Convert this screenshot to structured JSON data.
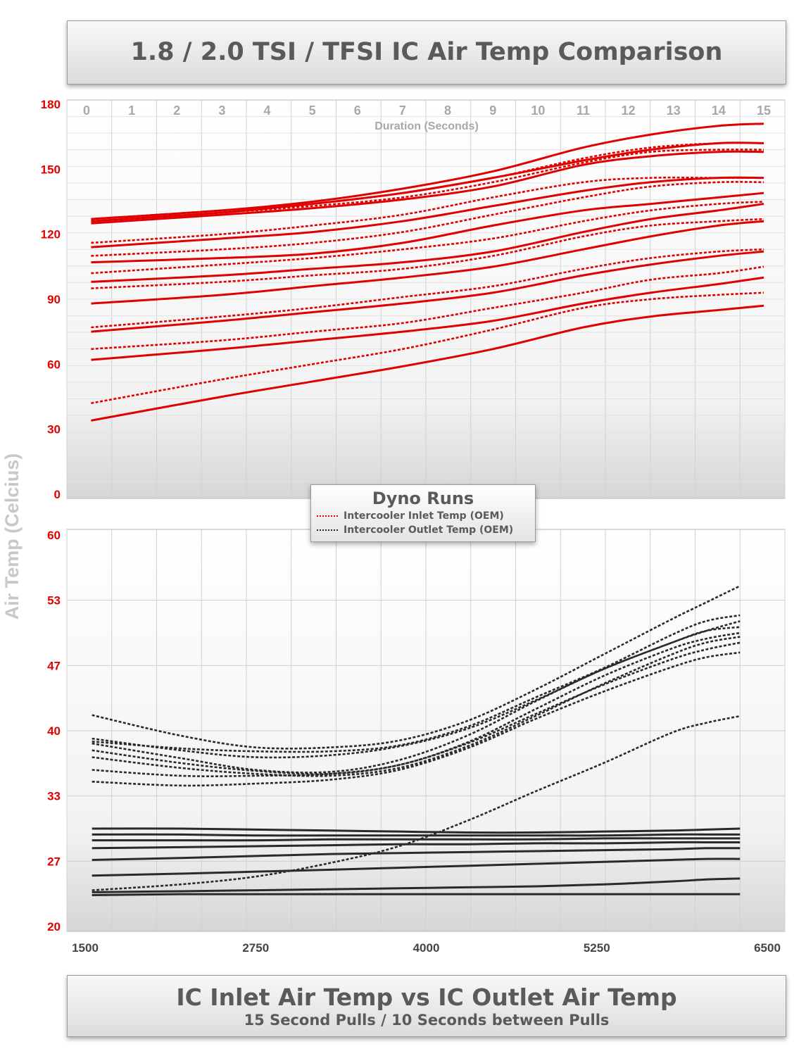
{
  "title": "1.8 / 2.0 TSI / TFSI IC Air Temp Comparison",
  "y_axis_label": "Air Temp (Celcius)",
  "footer": {
    "title": "IC Inlet Air Temp vs IC Outlet Air Temp",
    "subtitle": "15 Second Pulls / 10 Seconds between Pulls"
  },
  "legend": {
    "title": "Dyno Runs",
    "items": [
      {
        "label": "Intercooler Inlet Temp (OEM)",
        "color": "#e00000"
      },
      {
        "label": "Intercooler Outlet Temp (OEM)",
        "color": "#222222"
      }
    ]
  },
  "colors": {
    "inlet": "#e00000",
    "outlet": "#2a2a2a",
    "tick_red": "#e00000",
    "grid": "#d0d0d0"
  },
  "chart_data": [
    {
      "type": "line",
      "xlabel": "Duration (Seconds)",
      "ylabel": "Air Temp (Celcius)",
      "x_ticks": [
        0,
        1,
        2,
        3,
        4,
        5,
        6,
        7,
        8,
        9,
        10,
        11,
        12,
        13,
        14,
        15
      ],
      "y_ticks": [
        0,
        30,
        60,
        90,
        120,
        150,
        180
      ],
      "xlim": [
        0,
        15
      ],
      "ylim": [
        0,
        180
      ],
      "x_axis_position": "top",
      "grid": true,
      "x": [
        0.1,
        3,
        5,
        7,
        9,
        11,
        12.5,
        14,
        15
      ],
      "series": [
        {
          "style": "solid",
          "values": [
            34,
            45,
            52,
            59,
            67,
            77,
            82,
            85,
            87
          ]
        },
        {
          "style": "dashed",
          "values": [
            42,
            53,
            60,
            67,
            76,
            86,
            90,
            92,
            93
          ]
        },
        {
          "style": "solid",
          "values": [
            62,
            67,
            71,
            75,
            80,
            88,
            93,
            97,
            100
          ]
        },
        {
          "style": "dashed",
          "values": [
            67,
            71,
            75,
            79,
            86,
            93,
            99,
            102,
            105
          ]
        },
        {
          "style": "solid",
          "values": [
            75,
            80,
            84,
            88,
            93,
            101,
            106,
            110,
            112
          ]
        },
        {
          "style": "dashed",
          "values": [
            77,
            82,
            86,
            91,
            96,
            104,
            109,
            112,
            113
          ]
        },
        {
          "style": "solid",
          "values": [
            88,
            92,
            96,
            100,
            105,
            113,
            119,
            124,
            126
          ]
        },
        {
          "style": "dashed",
          "values": [
            95,
            98,
            101,
            104,
            110,
            119,
            124,
            126,
            127
          ]
        },
        {
          "style": "solid",
          "values": [
            98,
            101,
            104,
            107,
            112,
            121,
            127,
            131,
            134
          ]
        },
        {
          "style": "dashed",
          "values": [
            102,
            106,
            109,
            113,
            118,
            126,
            131,
            134,
            135
          ]
        },
        {
          "style": "solid",
          "values": [
            107,
            109,
            111,
            116,
            124,
            131,
            134,
            137,
            139
          ]
        },
        {
          "style": "dashed",
          "values": [
            110,
            113,
            116,
            121,
            129,
            137,
            142,
            144,
            144
          ]
        },
        {
          "style": "solid",
          "values": [
            114,
            118,
            121,
            126,
            133,
            140,
            144,
            146,
            146
          ]
        },
        {
          "style": "dashed",
          "values": [
            116,
            120,
            124,
            129,
            137,
            144,
            146,
            146,
            146
          ]
        },
        {
          "style": "solid",
          "values": [
            125,
            129,
            132,
            136,
            142,
            152,
            156,
            158,
            158
          ]
        },
        {
          "style": "dashed",
          "values": [
            126,
            130,
            133,
            137,
            144,
            153,
            158,
            159,
            159
          ]
        },
        {
          "style": "solid",
          "values": [
            126,
            130,
            134,
            139,
            146,
            154,
            159,
            162,
            162
          ]
        },
        {
          "style": "dashed",
          "values": [
            127,
            131,
            134,
            139,
            146,
            155,
            160,
            162,
            162
          ]
        },
        {
          "style": "solid",
          "values": [
            127,
            131,
            135,
            141,
            149,
            160,
            166,
            170,
            171
          ]
        }
      ]
    },
    {
      "type": "line",
      "x_ticks": [
        1500,
        2750,
        4000,
        5250,
        6500
      ],
      "y_ticks": [
        20,
        27,
        33,
        40,
        47,
        53,
        60
      ],
      "xlim": [
        1400,
        6550
      ],
      "ylim": [
        20,
        60
      ],
      "grid": true,
      "x": [
        1550,
        2200,
        2750,
        3300,
        3800,
        4300,
        4800,
        5300,
        5800,
        6050,
        6300
      ],
      "series": [
        {
          "style": "solid",
          "values": [
            23.2,
            23.3,
            23.3,
            23.3,
            23.3,
            23.3,
            23.3,
            23.3,
            23.3,
            23.3,
            23.3
          ]
        },
        {
          "style": "solid",
          "values": [
            23.5,
            23.6,
            23.7,
            23.8,
            23.9,
            24.0,
            24.1,
            24.3,
            24.6,
            24.8,
            24.9
          ]
        },
        {
          "style": "dashed",
          "values": [
            23.7,
            24.3,
            25.1,
            26.5,
            28.2,
            30.8,
            33.8,
            36.7,
            39.8,
            40.8,
            41.5
          ]
        },
        {
          "style": "solid",
          "values": [
            25.2,
            25.4,
            25.6,
            25.8,
            26.0,
            26.2,
            26.4,
            26.6,
            26.8,
            26.9,
            26.9
          ]
        },
        {
          "style": "solid",
          "values": [
            26.8,
            27.0,
            27.2,
            27.4,
            27.5,
            27.6,
            27.7,
            27.8,
            27.9,
            28.0,
            28.0
          ]
        },
        {
          "style": "solid",
          "values": [
            28.0,
            28.1,
            28.2,
            28.3,
            28.4,
            28.4,
            28.5,
            28.5,
            28.6,
            28.6,
            28.6
          ]
        },
        {
          "style": "solid",
          "values": [
            28.8,
            28.8,
            28.8,
            28.9,
            28.9,
            28.9,
            28.9,
            29.0,
            29.0,
            29.0,
            29.0
          ]
        },
        {
          "style": "solid",
          "values": [
            29.4,
            29.4,
            29.3,
            29.3,
            29.3,
            29.3,
            29.3,
            29.3,
            29.4,
            29.4,
            29.4
          ]
        },
        {
          "style": "solid",
          "values": [
            30.0,
            30.0,
            29.9,
            29.8,
            29.7,
            29.6,
            29.6,
            29.7,
            29.8,
            29.9,
            30.0
          ]
        },
        {
          "style": "dashed",
          "values": [
            34.8,
            34.4,
            34.6,
            35.0,
            36.0,
            38.2,
            41.2,
            44.0,
            46.5,
            47.5,
            48.0
          ]
        },
        {
          "style": "dashed",
          "values": [
            36.0,
            35.4,
            35.4,
            35.6,
            36.5,
            38.7,
            41.7,
            44.7,
            47.3,
            48.3,
            49.0
          ]
        },
        {
          "style": "dashed",
          "values": [
            37.3,
            36.2,
            35.6,
            35.4,
            36.2,
            38.4,
            41.5,
            44.8,
            47.8,
            49.0,
            49.6
          ]
        },
        {
          "style": "dashed",
          "values": [
            38.0,
            36.7,
            35.9,
            35.6,
            36.5,
            38.8,
            42.2,
            45.6,
            48.4,
            49.4,
            50.0
          ]
        },
        {
          "style": "dashed",
          "values": [
            38.7,
            37.2,
            36.0,
            35.8,
            37.0,
            39.5,
            43.0,
            46.3,
            49.0,
            50.2,
            51.2
          ]
        },
        {
          "style": "dashed",
          "values": [
            39.2,
            38.0,
            37.3,
            37.5,
            38.4,
            40.2,
            43.1,
            46.3,
            49.0,
            50.2,
            50.6
          ]
        },
        {
          "style": "dashed",
          "values": [
            38.9,
            38.2,
            37.9,
            37.9,
            38.5,
            40.4,
            43.4,
            46.4,
            49.8,
            51.2,
            51.8
          ]
        },
        {
          "style": "dashed",
          "values": [
            41.6,
            39.5,
            38.3,
            38.3,
            39.0,
            41.0,
            44.2,
            47.8,
            51.4,
            53.1,
            54.8
          ]
        }
      ]
    }
  ]
}
